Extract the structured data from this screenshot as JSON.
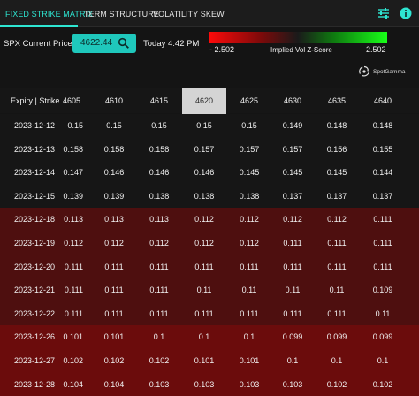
{
  "tabs": [
    {
      "label": "FIXED STRIKE MATRIX",
      "active": true
    },
    {
      "label": "TERM STRUCTURE",
      "active": false
    },
    {
      "label": "VOLATILITY SKEW",
      "active": false
    }
  ],
  "toolbar": {
    "settings_icon": "sliders-icon",
    "info_icon": "info-icon",
    "accent": "#2ee6d2"
  },
  "controls": {
    "price_label": "SPX Current Price:",
    "price_value": "4622.44",
    "timestamp": "Today 4:42 PM",
    "zscore": {
      "min_label": "- 2.502",
      "title": "Implied Vol Z-Score",
      "max_label": "2.502"
    },
    "brand": "SpotGamma"
  },
  "table": {
    "header_label": "Expiry | Strike",
    "strikes": [
      "4605",
      "4610",
      "4615",
      "4620",
      "4625",
      "4630",
      "4635",
      "4640"
    ],
    "highlight_strike": "4620",
    "rows": [
      {
        "expiry": "2023-12-12",
        "values": [
          "0.15",
          "0.15",
          "0.15",
          "0.15",
          "0.15",
          "0.149",
          "0.148",
          "0.148"
        ],
        "tint": "neutral"
      },
      {
        "expiry": "2023-12-13",
        "values": [
          "0.158",
          "0.158",
          "0.158",
          "0.157",
          "0.157",
          "0.157",
          "0.156",
          "0.155"
        ],
        "tint": "neutral"
      },
      {
        "expiry": "2023-12-14",
        "values": [
          "0.147",
          "0.146",
          "0.146",
          "0.146",
          "0.145",
          "0.145",
          "0.145",
          "0.144"
        ],
        "tint": "neutral"
      },
      {
        "expiry": "2023-12-15",
        "values": [
          "0.139",
          "0.139",
          "0.138",
          "0.138",
          "0.138",
          "0.137",
          "0.137",
          "0.137"
        ],
        "tint": "neutral"
      },
      {
        "expiry": "2023-12-18",
        "values": [
          "0.113",
          "0.113",
          "0.113",
          "0.112",
          "0.112",
          "0.112",
          "0.112",
          "0.111"
        ],
        "tint": "red1"
      },
      {
        "expiry": "2023-12-19",
        "values": [
          "0.112",
          "0.112",
          "0.112",
          "0.112",
          "0.112",
          "0.111",
          "0.111",
          "0.111"
        ],
        "tint": "red1"
      },
      {
        "expiry": "2023-12-20",
        "values": [
          "0.111",
          "0.111",
          "0.111",
          "0.111",
          "0.111",
          "0.111",
          "0.111",
          "0.111"
        ],
        "tint": "red1"
      },
      {
        "expiry": "2023-12-21",
        "values": [
          "0.111",
          "0.111",
          "0.111",
          "0.11",
          "0.11",
          "0.11",
          "0.11",
          "0.109"
        ],
        "tint": "red1"
      },
      {
        "expiry": "2023-12-22",
        "values": [
          "0.111",
          "0.111",
          "0.111",
          "0.111",
          "0.111",
          "0.111",
          "0.111",
          "0.11"
        ],
        "tint": "red1"
      },
      {
        "expiry": "2023-12-26",
        "values": [
          "0.101",
          "0.101",
          "0.1",
          "0.1",
          "0.1",
          "0.099",
          "0.099",
          "0.099"
        ],
        "tint": "red2"
      },
      {
        "expiry": "2023-12-27",
        "values": [
          "0.102",
          "0.102",
          "0.102",
          "0.101",
          "0.101",
          "0.1",
          "0.1",
          "0.1"
        ],
        "tint": "red2"
      },
      {
        "expiry": "2023-12-28",
        "values": [
          "0.104",
          "0.104",
          "0.103",
          "0.103",
          "0.103",
          "0.103",
          "0.102",
          "0.102"
        ],
        "tint": "red2"
      }
    ]
  },
  "colors": {
    "neutral": "#161616",
    "red1": "#4e0f0f",
    "red2": "#6b0c0c",
    "header": "#161616"
  }
}
